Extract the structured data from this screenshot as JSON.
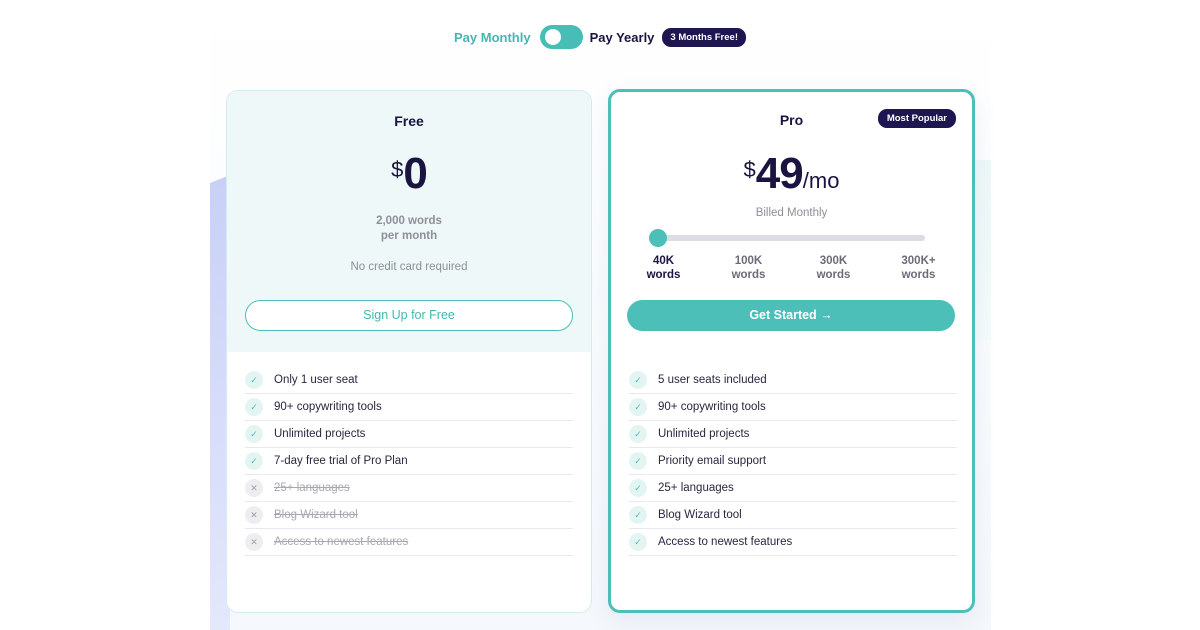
{
  "toggle": {
    "monthly_label": "Pay Monthly",
    "yearly_label": "Pay Yearly",
    "promo_badge": "3 Months Free!"
  },
  "free_plan": {
    "title": "Free",
    "currency": "$",
    "price": "0",
    "words_line1": "2,000 words",
    "words_line2": "per month",
    "note": "No credit card required",
    "cta": "Sign Up for Free",
    "features": [
      {
        "label": "Only 1 user seat",
        "included": true
      },
      {
        "label": "90+ copywriting tools",
        "included": true
      },
      {
        "label": "Unlimited projects",
        "included": true
      },
      {
        "label": "7-day free trial of Pro Plan",
        "included": true
      },
      {
        "label": "25+ languages",
        "included": false
      },
      {
        "label": "Blog Wizard tool",
        "included": false
      },
      {
        "label": "Access to newest features",
        "included": false
      }
    ]
  },
  "pro_plan": {
    "title": "Pro",
    "badge": "Most Popular",
    "currency": "$",
    "price": "49",
    "period": "/mo",
    "billing": "Billed Monthly",
    "slider_selected_index": 0,
    "tiers": [
      {
        "amount": "40K",
        "unit": "words"
      },
      {
        "amount": "100K",
        "unit": "words"
      },
      {
        "amount": "300K",
        "unit": "words"
      },
      {
        "amount": "300K+",
        "unit": "words"
      }
    ],
    "cta": "Get Started",
    "cta_arrow": "→",
    "features": [
      {
        "label": "5 user seats included",
        "included": true
      },
      {
        "label": "90+ copywriting tools",
        "included": true
      },
      {
        "label": "Unlimited projects",
        "included": true
      },
      {
        "label": "Priority email support",
        "included": true
      },
      {
        "label": "25+ languages",
        "included": true
      },
      {
        "label": "Blog Wizard tool",
        "included": true
      },
      {
        "label": "Access to newest features",
        "included": true
      }
    ]
  },
  "icons": {
    "check": "✓",
    "cross": "✕"
  },
  "colors": {
    "accent": "#4bbfb8",
    "dark": "#1d1650"
  }
}
